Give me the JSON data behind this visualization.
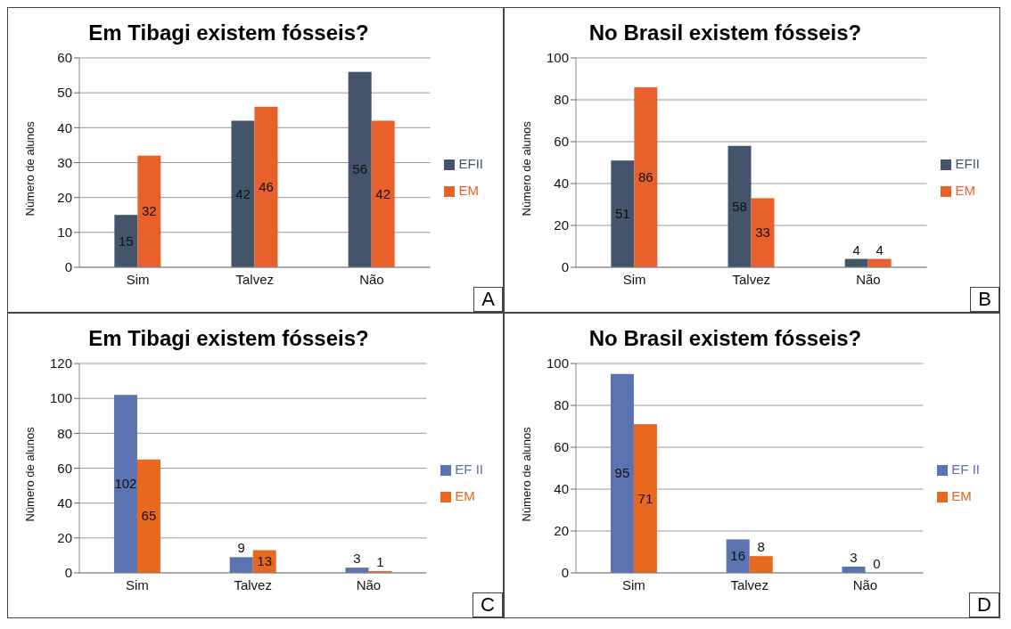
{
  "chart_data": [
    {
      "type": "bar",
      "title": "Em Tibagi existem fósseis?",
      "ylabel": "Número de alunos",
      "categories": [
        "Sim",
        "Talvez",
        "Não"
      ],
      "series": [
        {
          "name": "EFII",
          "color": "#44546a",
          "values": [
            15,
            42,
            56
          ]
        },
        {
          "name": "EM",
          "color": "#e8602c",
          "values": [
            32,
            46,
            42
          ]
        }
      ],
      "ylim": [
        0,
        60
      ],
      "yticks": [
        0,
        10,
        20,
        30,
        40,
        50,
        60
      ],
      "grid": "y",
      "legend": "right",
      "data_labels": true,
      "annotations": [
        "A"
      ]
    },
    {
      "type": "bar",
      "title": "No Brasil existem fósseis?",
      "ylabel": "Número de alunos",
      "categories": [
        "Sim",
        "Talvez",
        "Não"
      ],
      "series": [
        {
          "name": "EFII",
          "color": "#44546a",
          "values": [
            51,
            58,
            4
          ]
        },
        {
          "name": "EM",
          "color": "#e8602c",
          "values": [
            86,
            33,
            4
          ]
        }
      ],
      "ylim": [
        0,
        100
      ],
      "yticks": [
        0,
        20,
        40,
        60,
        80,
        100
      ],
      "grid": "y",
      "legend": "right",
      "data_labels": true,
      "annotations": [
        "B"
      ]
    },
    {
      "type": "bar",
      "title": "Em Tibagi existem fósseis?",
      "ylabel": "Número de alunos",
      "categories": [
        "Sim",
        "Talvez",
        "Não"
      ],
      "series": [
        {
          "name": "EF II",
          "color": "#5b73b0",
          "values": [
            102,
            9,
            3
          ]
        },
        {
          "name": "EM",
          "color": "#e8681e",
          "values": [
            65,
            13,
            1
          ]
        }
      ],
      "ylim": [
        0,
        120
      ],
      "yticks": [
        0,
        20,
        40,
        60,
        80,
        100,
        120
      ],
      "grid": "y",
      "legend": "right",
      "data_labels": true,
      "annotations": [
        "C"
      ]
    },
    {
      "type": "bar",
      "title": "No Brasil existem fósseis?",
      "ylabel": "Número de alunos",
      "categories": [
        "Sim",
        "Talvez",
        "Não"
      ],
      "series": [
        {
          "name": "EF II",
          "color": "#5b73b0",
          "values": [
            95,
            16,
            3
          ]
        },
        {
          "name": "EM",
          "color": "#e8681e",
          "values": [
            71,
            8,
            0
          ]
        }
      ],
      "ylim": [
        0,
        100
      ],
      "yticks": [
        0,
        20,
        40,
        60,
        80,
        100
      ],
      "grid": "y",
      "legend": "right",
      "data_labels": true,
      "annotations": [
        "D"
      ]
    }
  ]
}
